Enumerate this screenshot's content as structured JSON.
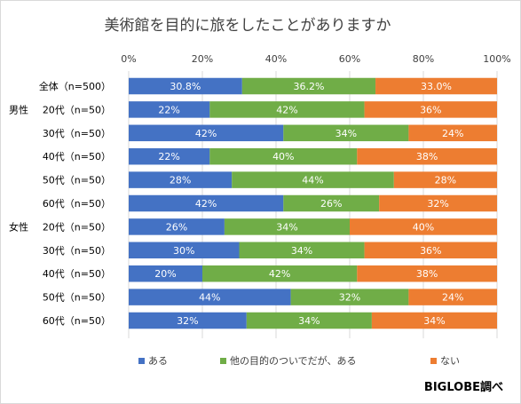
{
  "chart_data": {
    "type": "bar",
    "orientation": "horizontal",
    "stacked": true,
    "title": "美術館を目的に旅をしたことがありますか",
    "x_ticks": [
      "0%",
      "20%",
      "40%",
      "60%",
      "80%",
      "100%"
    ],
    "xlim": [
      0,
      100
    ],
    "grid": true,
    "legend_position": "bottom",
    "categories": [
      {
        "group": "",
        "label": "全体（n=500）"
      },
      {
        "group": "男性",
        "label": "20代（n=50）"
      },
      {
        "group": "",
        "label": "30代（n=50）"
      },
      {
        "group": "",
        "label": "40代（n=50）"
      },
      {
        "group": "",
        "label": "50代（n=50）"
      },
      {
        "group": "",
        "label": "60代（n=50）"
      },
      {
        "group": "女性",
        "label": "20代（n=50）"
      },
      {
        "group": "",
        "label": "30代（n=50）"
      },
      {
        "group": "",
        "label": "40代（n=50）"
      },
      {
        "group": "",
        "label": "50代（n=50）"
      },
      {
        "group": "",
        "label": "60代（n=50）"
      }
    ],
    "series": [
      {
        "name": "ある",
        "color": "#4472c4",
        "values": [
          30.8,
          22,
          42,
          22,
          28,
          42,
          26,
          30,
          20,
          44,
          32
        ],
        "labels": [
          "30.8%",
          "22%",
          "42%",
          "22%",
          "28%",
          "42%",
          "26%",
          "30%",
          "20%",
          "44%",
          "32%"
        ]
      },
      {
        "name": "他の目的のついでだが、ある",
        "color": "#70ad47",
        "values": [
          36.2,
          42,
          34,
          40,
          44,
          26,
          34,
          34,
          42,
          32,
          34
        ],
        "labels": [
          "36.2%",
          "42%",
          "34%",
          "40%",
          "44%",
          "26%",
          "34%",
          "34%",
          "42%",
          "32%",
          "34%"
        ]
      },
      {
        "name": "ない",
        "color": "#ed7d31",
        "values": [
          33.0,
          36,
          24,
          38,
          28,
          32,
          40,
          36,
          38,
          24,
          34
        ],
        "labels": [
          "33.0%",
          "36%",
          "24%",
          "38%",
          "28%",
          "32%",
          "40%",
          "36%",
          "38%",
          "24%",
          "34%"
        ]
      }
    ]
  },
  "credit": "BIGLOBE調べ"
}
